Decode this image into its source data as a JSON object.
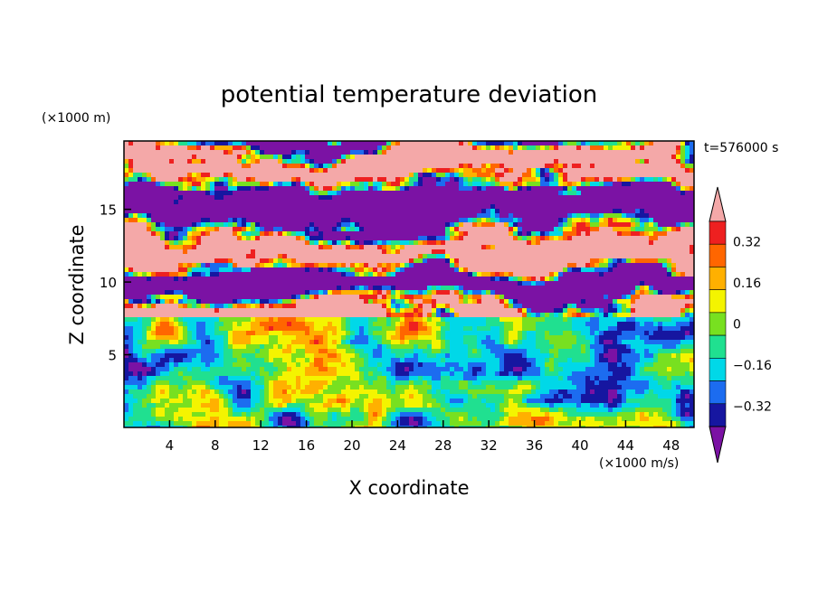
{
  "chart_data": {
    "type": "heatmap",
    "title": "potential temperature deviation",
    "xlabel": "X coordinate",
    "ylabel": "Z coordinate",
    "x_unit": "(×1000 m/s)",
    "y_unit": "(×1000 m)",
    "time_label": "t=576000 s",
    "xlim": [
      0,
      50
    ],
    "ylim": [
      0,
      19.7
    ],
    "x_ticks": [
      4,
      8,
      12,
      16,
      20,
      24,
      28,
      32,
      36,
      40,
      44,
      48
    ],
    "y_ticks": [
      5,
      10,
      15
    ],
    "colorbar": {
      "levels": [
        -0.4,
        -0.32,
        -0.24,
        -0.16,
        -0.08,
        0,
        0.08,
        0.16,
        0.24,
        0.32,
        0.4
      ],
      "tick_labels": [
        "0.32",
        "0.16",
        "0",
        "−0.16",
        "−0.32"
      ],
      "tick_values": [
        0.32,
        0.16,
        0,
        -0.16,
        -0.32
      ],
      "colors": [
        "#7b12a4",
        "#1616a0",
        "#1c6cf0",
        "#00d8e8",
        "#20e090",
        "#78e020",
        "#f4f400",
        "#ffb000",
        "#ff6600",
        "#ee2020",
        "#f4a8a8"
      ]
    }
  }
}
